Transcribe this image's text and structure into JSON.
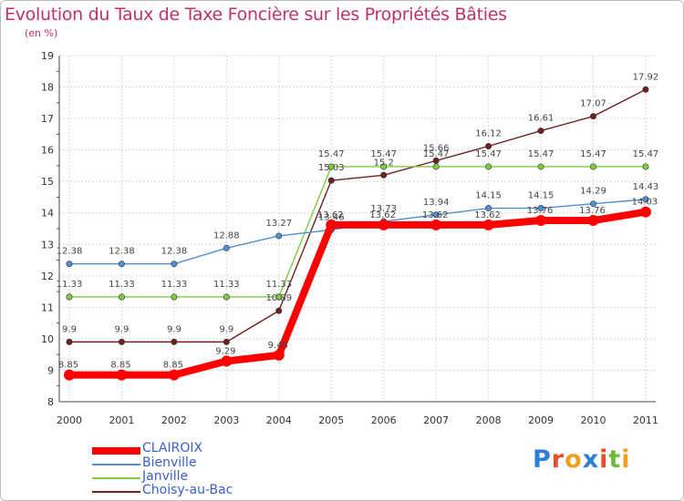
{
  "chart_data": {
    "type": "line",
    "title": "Evolution du Taux de Taxe Foncière sur les Propriétés Bâties",
    "subtitle": "(en %)",
    "xlabel": "",
    "ylabel": "",
    "x": [
      "2000",
      "2001",
      "2002",
      "2003",
      "2004",
      "2005",
      "2006",
      "2007",
      "2008",
      "2009",
      "2010",
      "2011"
    ],
    "ylim": [
      8,
      19
    ],
    "yticks": [
      "8",
      "9",
      "10",
      "11",
      "12",
      "13",
      "14",
      "15",
      "16",
      "17",
      "18",
      "19"
    ],
    "series": [
      {
        "name": "CLAIROIX",
        "color": "#ff0000",
        "values": [
          8.85,
          8.85,
          8.85,
          9.29,
          9.48,
          13.62,
          13.62,
          13.62,
          13.62,
          13.76,
          13.76,
          14.03
        ],
        "labels": [
          "8.85",
          "8.85",
          "8.85",
          "9.29",
          "9.48",
          "13.62",
          "13.62",
          "13.62",
          "13.62",
          "13.76",
          "13.76",
          "14.03"
        ]
      },
      {
        "name": "Bienville",
        "color": "#4f90d0",
        "values": [
          12.38,
          12.38,
          12.38,
          12.88,
          13.27,
          13.46,
          13.73,
          13.94,
          14.15,
          14.15,
          14.29,
          14.43
        ],
        "labels": [
          "12.38",
          "12.38",
          "12.38",
          "12.88",
          "13.27",
          "13.46",
          "13.73",
          "13.94",
          "14.15",
          "14.15",
          "14.29",
          "14.43"
        ]
      },
      {
        "name": "Janville",
        "color": "#80cc40",
        "values": [
          11.33,
          11.33,
          11.33,
          11.33,
          11.33,
          15.47,
          15.47,
          15.47,
          15.47,
          15.47,
          15.47,
          15.47
        ],
        "labels": [
          "11.33",
          "11.33",
          "11.33",
          "11.33",
          "11.33",
          "15.47",
          "15.47",
          "15.47",
          "15.47",
          "15.47",
          "15.47",
          "15.47"
        ]
      },
      {
        "name": "Choisy-au-Bac",
        "color": "#702020",
        "values": [
          9.9,
          9.9,
          9.9,
          9.9,
          10.89,
          15.03,
          15.2,
          15.66,
          16.12,
          16.61,
          17.07,
          17.92
        ],
        "labels": [
          "9.9",
          "9.9",
          "9.9",
          "9.9",
          "10.89",
          "15.03",
          "15.2",
          "15.66",
          "16.12",
          "16.61",
          "17.07",
          "17.92"
        ]
      }
    ]
  },
  "legend": {
    "items": [
      {
        "name": "CLAIROIX",
        "color": "#ff0000"
      },
      {
        "name": "Bienville",
        "color": "#4f90d0"
      },
      {
        "name": "Janville",
        "color": "#80cc40"
      },
      {
        "name": "Choisy-au-Bac",
        "color": "#702020"
      }
    ]
  },
  "logo": {
    "text": "Proxiti",
    "letters": [
      {
        "ch": "P",
        "color": "#2f7fd4"
      },
      {
        "ch": "r",
        "color": "#e84c2a"
      },
      {
        "ch": "o",
        "color": "#f0a020"
      },
      {
        "ch": "x",
        "color": "#2f7fd4"
      },
      {
        "ch": "i",
        "color": "#e84c2a"
      },
      {
        "ch": "t",
        "color": "#6cbc3c"
      },
      {
        "ch": "i",
        "color": "#f0a020"
      }
    ]
  }
}
